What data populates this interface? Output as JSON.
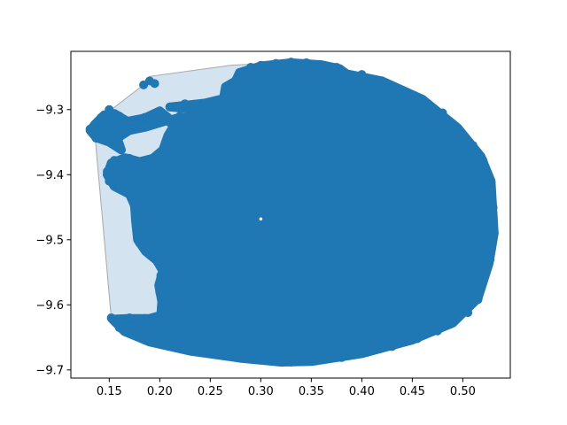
{
  "chart_data": {
    "type": "scatter",
    "title": "",
    "xlabel": "",
    "ylabel": "",
    "xlim": [
      0.112,
      0.547
    ],
    "ylim": [
      -9.7125,
      -9.2105
    ],
    "grid": false,
    "legend": "none",
    "x_ticks": [
      0.15,
      0.2,
      0.25,
      0.3,
      0.35,
      0.4,
      0.45,
      0.5
    ],
    "x_tick_labels": [
      "0.15",
      "0.20",
      "0.25",
      "0.30",
      "0.35",
      "0.40",
      "0.45",
      "0.50"
    ],
    "y_ticks": [
      -9.3,
      -9.4,
      -9.5,
      -9.6,
      -9.7
    ],
    "y_tick_labels": [
      "−9.3",
      "−9.4",
      "−9.5",
      "−9.6",
      "−9.7"
    ],
    "colors": {
      "points": "#1f77b4",
      "hull_fill": "#d4e3f0",
      "hull_edge": "#a8a8a8"
    },
    "hull": [
      [
        0.129,
        -9.327
      ],
      [
        0.136,
        -9.343
      ],
      [
        0.152,
        -9.62
      ],
      [
        0.175,
        -9.645
      ],
      [
        0.25,
        -9.678
      ],
      [
        0.33,
        -9.689
      ],
      [
        0.41,
        -9.672
      ],
      [
        0.48,
        -9.632
      ],
      [
        0.517,
        -9.59
      ],
      [
        0.531,
        -9.49
      ],
      [
        0.527,
        -9.402
      ],
      [
        0.497,
        -9.34
      ],
      [
        0.45,
        -9.288
      ],
      [
        0.39,
        -9.245
      ],
      [
        0.33,
        -9.227
      ],
      [
        0.27,
        -9.232
      ],
      [
        0.19,
        -9.249
      ],
      [
        0.184,
        -9.262
      ],
      [
        0.152,
        -9.3
      ]
    ],
    "series": [
      {
        "points": [
          [
            0.131,
            -9.33
          ],
          [
            0.137,
            -9.344
          ],
          [
            0.142,
            -9.312
          ],
          [
            0.15,
            -9.3
          ],
          [
            0.16,
            -9.31
          ],
          [
            0.172,
            -9.318
          ],
          [
            0.185,
            -9.312
          ],
          [
            0.2,
            -9.302
          ],
          [
            0.21,
            -9.296
          ],
          [
            0.225,
            -9.291
          ],
          [
            0.245,
            -9.29
          ],
          [
            0.26,
            -9.292
          ],
          [
            0.263,
            -9.282
          ],
          [
            0.27,
            -9.266
          ],
          [
            0.278,
            -9.254
          ],
          [
            0.279,
            -9.243
          ],
          [
            0.29,
            -9.235
          ],
          [
            0.3,
            -9.232
          ],
          [
            0.315,
            -9.229
          ],
          [
            0.33,
            -9.227
          ],
          [
            0.345,
            -9.228
          ],
          [
            0.36,
            -9.231
          ],
          [
            0.375,
            -9.235
          ],
          [
            0.38,
            -9.244
          ],
          [
            0.4,
            -9.246
          ],
          [
            0.42,
            -9.256
          ],
          [
            0.44,
            -9.27
          ],
          [
            0.46,
            -9.285
          ],
          [
            0.48,
            -9.305
          ],
          [
            0.495,
            -9.33
          ],
          [
            0.51,
            -9.355
          ],
          [
            0.52,
            -9.378
          ],
          [
            0.525,
            -9.4
          ],
          [
            0.528,
            -9.412
          ],
          [
            0.53,
            -9.45
          ],
          [
            0.531,
            -9.49
          ],
          [
            0.527,
            -9.53
          ],
          [
            0.52,
            -9.565
          ],
          [
            0.515,
            -9.592
          ],
          [
            0.505,
            -9.612
          ],
          [
            0.49,
            -9.628
          ],
          [
            0.475,
            -9.64
          ],
          [
            0.455,
            -9.652
          ],
          [
            0.43,
            -9.664
          ],
          [
            0.405,
            -9.673
          ],
          [
            0.38,
            -9.681
          ],
          [
            0.355,
            -9.686
          ],
          [
            0.33,
            -9.688
          ],
          [
            0.305,
            -9.685
          ],
          [
            0.28,
            -9.682
          ],
          [
            0.255,
            -9.676
          ],
          [
            0.23,
            -9.67
          ],
          [
            0.205,
            -9.662
          ],
          [
            0.185,
            -9.654
          ],
          [
            0.17,
            -9.644
          ],
          [
            0.16,
            -9.635
          ],
          [
            0.152,
            -9.62
          ],
          [
            0.158,
            -9.622
          ],
          [
            0.17,
            -9.62
          ],
          [
            0.185,
            -9.621
          ],
          [
            0.2,
            -9.618
          ],
          [
            0.202,
            -9.6
          ],
          [
            0.2,
            -9.58
          ],
          [
            0.201,
            -9.555
          ],
          [
            0.198,
            -9.535
          ],
          [
            0.188,
            -9.52
          ],
          [
            0.18,
            -9.505
          ],
          [
            0.178,
            -9.488
          ],
          [
            0.176,
            -9.47
          ],
          [
            0.175,
            -9.45
          ],
          [
            0.172,
            -9.432
          ],
          [
            0.16,
            -9.42
          ],
          [
            0.15,
            -9.41
          ],
          [
            0.148,
            -9.395
          ],
          [
            0.155,
            -9.378
          ],
          [
            0.17,
            -9.375
          ],
          [
            0.182,
            -9.385
          ],
          [
            0.192,
            -9.377
          ],
          [
            0.205,
            -9.36
          ],
          [
            0.208,
            -9.34
          ],
          [
            0.21,
            -9.32
          ],
          [
            0.22,
            -9.31
          ],
          [
            0.24,
            -9.305
          ],
          [
            0.255,
            -9.3
          ],
          [
            0.19,
            -9.256
          ],
          [
            0.184,
            -9.262
          ],
          [
            0.195,
            -9.26
          ],
          [
            0.27,
            -9.267
          ],
          [
            0.3,
            -9.468
          ],
          [
            0.24,
            -9.33
          ],
          [
            0.3,
            -9.3
          ],
          [
            0.4,
            -9.4
          ],
          [
            0.45,
            -9.5
          ],
          [
            0.35,
            -9.6
          ],
          [
            0.25,
            -9.45
          ],
          [
            0.3,
            -9.55
          ]
        ],
        "fill_region": [
          [
            0.21,
            -9.296
          ],
          [
            0.245,
            -9.29
          ],
          [
            0.263,
            -9.283
          ],
          [
            0.265,
            -9.265
          ],
          [
            0.275,
            -9.256
          ],
          [
            0.279,
            -9.243
          ],
          [
            0.3,
            -9.233
          ],
          [
            0.33,
            -9.228
          ],
          [
            0.36,
            -9.231
          ],
          [
            0.378,
            -9.237
          ],
          [
            0.385,
            -9.245
          ],
          [
            0.42,
            -9.256
          ],
          [
            0.46,
            -9.284
          ],
          [
            0.495,
            -9.328
          ],
          [
            0.518,
            -9.372
          ],
          [
            0.528,
            -9.41
          ],
          [
            0.531,
            -9.49
          ],
          [
            0.526,
            -9.536
          ],
          [
            0.515,
            -9.59
          ],
          [
            0.49,
            -9.628
          ],
          [
            0.45,
            -9.654
          ],
          [
            0.4,
            -9.675
          ],
          [
            0.35,
            -9.687
          ],
          [
            0.32,
            -9.688
          ],
          [
            0.28,
            -9.682
          ],
          [
            0.23,
            -9.671
          ],
          [
            0.19,
            -9.657
          ],
          [
            0.165,
            -9.641
          ],
          [
            0.153,
            -9.622
          ],
          [
            0.168,
            -9.621
          ],
          [
            0.19,
            -9.621
          ],
          [
            0.201,
            -9.616
          ],
          [
            0.202,
            -9.595
          ],
          [
            0.199,
            -9.57
          ],
          [
            0.203,
            -9.548
          ],
          [
            0.197,
            -9.532
          ],
          [
            0.186,
            -9.518
          ],
          [
            0.178,
            -9.5
          ],
          [
            0.176,
            -9.47
          ],
          [
            0.175,
            -9.447
          ],
          [
            0.17,
            -9.43
          ],
          [
            0.155,
            -9.418
          ],
          [
            0.148,
            -9.4
          ],
          [
            0.152,
            -9.382
          ],
          [
            0.166,
            -9.374
          ],
          [
            0.18,
            -9.38
          ],
          [
            0.193,
            -9.375
          ],
          [
            0.203,
            -9.362
          ],
          [
            0.208,
            -9.34
          ],
          [
            0.215,
            -9.322
          ],
          [
            0.208,
            -9.312
          ],
          [
            0.2,
            -9.302
          ],
          [
            0.185,
            -9.313
          ],
          [
            0.168,
            -9.318
          ],
          [
            0.155,
            -9.306
          ],
          [
            0.145,
            -9.308
          ],
          [
            0.136,
            -9.322
          ],
          [
            0.131,
            -9.332
          ],
          [
            0.137,
            -9.343
          ],
          [
            0.15,
            -9.35
          ],
          [
            0.162,
            -9.362
          ],
          [
            0.158,
            -9.344
          ],
          [
            0.17,
            -9.332
          ],
          [
            0.186,
            -9.327
          ],
          [
            0.205,
            -9.318
          ],
          [
            0.22,
            -9.312
          ],
          [
            0.24,
            -9.307
          ],
          [
            0.258,
            -9.303
          ]
        ]
      }
    ]
  }
}
